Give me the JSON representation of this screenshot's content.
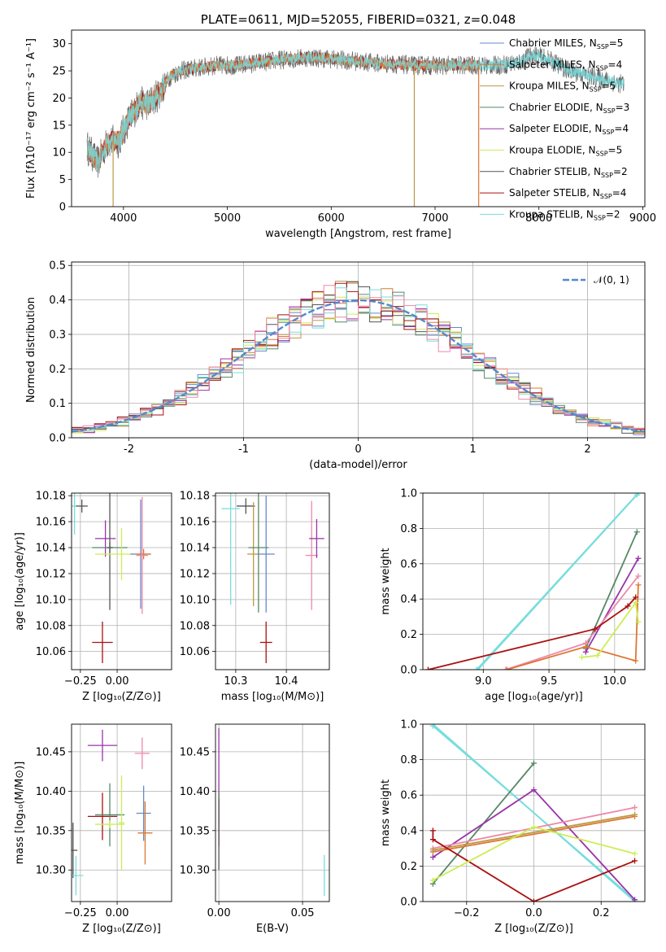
{
  "colors": {
    "chabrier_miles": "#6688cc",
    "salpeter_miles": "#dd7733",
    "kroupa_miles": "#bb9944",
    "chabrier_elodie": "#558866",
    "salpeter_elodie": "#9933aa",
    "kroupa_elodie": "#ccee55",
    "chabrier_stelib": "#555555",
    "salpeter_stelib": "#aa1111",
    "kroupa_stelib": "#77dddd",
    "pink": "#ee88aa",
    "normal_curve": "#5588cc"
  },
  "chart_data": [
    {
      "id": "spectrum",
      "type": "line",
      "title": "PLATE=0611, MJD=52055, FIBERID=0321, z=0.048",
      "xlabel": "wavelength [Angstrom, rest frame]",
      "ylabel": "Flux [fλ10⁻¹⁷ erg cm⁻² s⁻¹ A⁻¹]",
      "xlim": [
        3500,
        9020
      ],
      "ylim": [
        0,
        32.5
      ],
      "xticks": [
        4000,
        5000,
        6000,
        7000,
        8000,
        9000
      ],
      "yticks": [
        0,
        5,
        10,
        15,
        20,
        25,
        30
      ],
      "legend": [
        {
          "label": "Chabrier MILES, N",
          "sub": "SSP",
          "suffix": "=5",
          "color_key": "chabrier_miles"
        },
        {
          "label": "Salpeter MILES, N",
          "sub": "SSP",
          "suffix": "=4",
          "color_key": "salpeter_miles"
        },
        {
          "label": "Kroupa MILES, N",
          "sub": "SSP",
          "suffix": "=5",
          "color_key": "kroupa_miles"
        },
        {
          "label": "Chabrier ELODIE, N",
          "sub": "SSP",
          "suffix": "=3",
          "color_key": "chabrier_elodie"
        },
        {
          "label": "Salpeter ELODIE, N",
          "sub": "SSP",
          "suffix": "=4",
          "color_key": "salpeter_elodie"
        },
        {
          "label": "Kroupa ELODIE, N",
          "sub": "SSP",
          "suffix": "=5",
          "color_key": "kroupa_elodie"
        },
        {
          "label": "Chabrier STELIB, N",
          "sub": "SSP",
          "suffix": "=2",
          "color_key": "chabrier_stelib"
        },
        {
          "label": "Salpeter STELIB, N",
          "sub": "SSP",
          "suffix": "=4",
          "color_key": "salpeter_stelib"
        },
        {
          "label": "Kroupa STELIB, N",
          "sub": "SSP",
          "suffix": "=2",
          "color_key": "kroupa_stelib"
        }
      ],
      "continuum": [
        [
          3650,
          11
        ],
        [
          3750,
          8
        ],
        [
          3850,
          12
        ],
        [
          3950,
          12
        ],
        [
          4050,
          16
        ],
        [
          4150,
          19
        ],
        [
          4250,
          19
        ],
        [
          4350,
          21
        ],
        [
          4450,
          24
        ],
        [
          4550,
          25
        ],
        [
          4700,
          25.5
        ],
        [
          4900,
          26
        ],
        [
          5100,
          26
        ],
        [
          5300,
          26.5
        ],
        [
          5500,
          27
        ],
        [
          5800,
          27.5
        ],
        [
          6100,
          27
        ],
        [
          6400,
          26.5
        ],
        [
          6800,
          26
        ],
        [
          7200,
          26
        ],
        [
          7600,
          26
        ],
        [
          7800,
          26.5
        ],
        [
          7950,
          28
        ],
        [
          8100,
          27
        ],
        [
          8300,
          25
        ],
        [
          8500,
          24
        ],
        [
          8700,
          23
        ],
        [
          8820,
          22.5
        ]
      ],
      "model_cutoffs": [
        {
          "x": 3900,
          "color_key": "kroupa_miles"
        },
        {
          "x": 6800,
          "color_key": "kroupa_miles"
        },
        {
          "x": 7420,
          "color_key": "salpeter_miles"
        }
      ],
      "model_end_x": 7420,
      "data_end_x": 8820
    },
    {
      "id": "residuals",
      "type": "line",
      "xlabel": "(data-model)/error",
      "ylabel": "Normed distribution",
      "xlim": [
        -2.5,
        2.5
      ],
      "ylim": [
        0,
        0.51
      ],
      "xticks": [
        -2,
        -1,
        0,
        1,
        2
      ],
      "yticks": [
        0.0,
        0.1,
        0.2,
        0.3,
        0.4,
        0.5
      ],
      "series": [
        {
          "name": "𝒩(0, 1)",
          "type": "gaussian",
          "mean": 0,
          "sigma": 1,
          "color_key": "normal_curve"
        }
      ],
      "histogram_bin_width": 0.1,
      "histogram_color_keys": [
        "chabrier_miles",
        "salpeter_miles",
        "kroupa_miles",
        "chabrier_elodie",
        "salpeter_elodie",
        "kroupa_elodie",
        "chabrier_stelib",
        "salpeter_stelib",
        "kroupa_stelib",
        "pink"
      ]
    },
    {
      "id": "age_vs_Z",
      "type": "scatter",
      "xlabel": "Z [log₁₀(Z/Z⊙)]",
      "ylabel": "age  [log₁₀(age/yr)]",
      "xlim": [
        -0.31,
        0.37
      ],
      "ylim": [
        10.046,
        10.182
      ],
      "xticks": [
        -0.25,
        0.0
      ],
      "xtick_labels": [
        "−0.25",
        "0.00"
      ],
      "yticks": [
        10.06,
        10.08,
        10.1,
        10.12,
        10.14,
        10.16,
        10.18
      ],
      "points": [
        {
          "x": -0.29,
          "y": 10.172,
          "xerr": 0.02,
          "yerr": 0.022,
          "color_key": "kroupa_stelib"
        },
        {
          "x": -0.24,
          "y": 10.172,
          "xerr": 0.04,
          "yerr": 0.005,
          "color_key": "chabrier_stelib"
        },
        {
          "x": -0.08,
          "y": 10.147,
          "xerr": 0.07,
          "yerr": 0.014,
          "color_key": "salpeter_elodie"
        },
        {
          "x": -0.05,
          "y": 10.14,
          "xerr": 0.12,
          "yerr": 0.004,
          "color_key": "chabrier_elodie"
        },
        {
          "x": -0.05,
          "y": 10.14,
          "xerr": 0.02,
          "yerr": 0.048,
          "color_key": "chabrier_stelib"
        },
        {
          "x": 0.03,
          "y": 10.135,
          "xerr": 0.18,
          "yerr": 0.02,
          "color_key": "kroupa_elodie"
        },
        {
          "x": 0.16,
          "y": 10.135,
          "xerr": 0.07,
          "yerr": 0.042,
          "color_key": "chabrier_miles"
        },
        {
          "x": 0.18,
          "y": 10.135,
          "xerr": 0.05,
          "yerr": 0.004,
          "color_key": "salpeter_miles"
        },
        {
          "x": 0.17,
          "y": 10.134,
          "xerr": 0.04,
          "yerr": 0.045,
          "color_key": "pink"
        },
        {
          "x": -0.1,
          "y": 10.067,
          "xerr": 0.07,
          "yerr": 0.016,
          "color_key": "salpeter_stelib"
        }
      ]
    },
    {
      "id": "age_vs_mass",
      "type": "scatter",
      "xlabel": "mass [log₁₀(M/M⊙)]",
      "xlim": [
        10.26,
        10.485
      ],
      "ylim": [
        10.046,
        10.182
      ],
      "xticks": [
        10.3,
        10.4
      ],
      "yticks": [
        10.06,
        10.08,
        10.1,
        10.12,
        10.14,
        10.16,
        10.18
      ],
      "points": [
        {
          "x": 10.29,
          "y": 10.17,
          "xerr": 0.018,
          "yerr": 0.074,
          "color_key": "kroupa_stelib"
        },
        {
          "x": 10.32,
          "y": 10.172,
          "xerr": 0.018,
          "yerr": 0.006,
          "color_key": "chabrier_stelib"
        },
        {
          "x": 10.335,
          "y": 10.135,
          "xerr": 0.012,
          "yerr": 0.04,
          "color_key": "kroupa_miles"
        },
        {
          "x": 10.345,
          "y": 10.14,
          "xerr": 0.02,
          "yerr": 0.05,
          "color_key": "chabrier_elodie"
        },
        {
          "x": 10.36,
          "y": 10.135,
          "xerr": 0.017,
          "yerr": 0.045,
          "color_key": "chabrier_miles"
        },
        {
          "x": 10.36,
          "y": 10.067,
          "xerr": 0.012,
          "yerr": 0.016,
          "color_key": "salpeter_stelib"
        },
        {
          "x": 10.45,
          "y": 10.134,
          "xerr": 0.012,
          "yerr": 0.042,
          "color_key": "pink"
        },
        {
          "x": 10.46,
          "y": 10.147,
          "xerr": 0.015,
          "yerr": 0.015,
          "color_key": "salpeter_elodie"
        }
      ]
    },
    {
      "id": "weight_vs_age",
      "type": "line",
      "xlabel": "age  [log₁₀(age/yr)]",
      "ylabel": "mass weight",
      "xlim": [
        8.54,
        10.23
      ],
      "ylim": [
        0,
        1
      ],
      "xticks": [
        9.0,
        9.5,
        10.0
      ],
      "yticks": [
        0.0,
        0.2,
        0.4,
        0.6,
        0.8,
        1.0
      ],
      "series": [
        {
          "color_key": "kroupa_stelib",
          "points": [
            [
              8.95,
              0.0
            ],
            [
              10.18,
              1.0
            ]
          ]
        },
        {
          "color_key": "kroupa_stelib",
          "points": [
            [
              8.96,
              0.0
            ],
            [
              10.17,
              0.99
            ]
          ]
        },
        {
          "color_key": "chabrier_elodie",
          "points": [
            [
              9.78,
              0.12
            ],
            [
              10.17,
              0.78
            ]
          ]
        },
        {
          "color_key": "salpeter_elodie",
          "points": [
            [
              9.78,
              0.1
            ],
            [
              10.18,
              0.63
            ]
          ]
        },
        {
          "color_key": "pink",
          "points": [
            [
              9.17,
              0.0
            ],
            [
              9.78,
              0.15
            ],
            [
              10.18,
              0.53
            ]
          ]
        },
        {
          "color_key": "salpeter_miles",
          "points": [
            [
              9.18,
              0.0
            ],
            [
              9.78,
              0.13
            ],
            [
              10.16,
              0.05
            ],
            [
              10.18,
              0.48
            ]
          ]
        },
        {
          "color_key": "salpeter_stelib",
          "points": [
            [
              8.58,
              0.0
            ],
            [
              9.85,
              0.23
            ],
            [
              10.1,
              0.36
            ],
            [
              10.16,
              0.41
            ]
          ]
        },
        {
          "color_key": "kroupa_elodie",
          "points": [
            [
              9.75,
              0.07
            ],
            [
              9.87,
              0.08
            ],
            [
              10.16,
              0.38
            ],
            [
              10.18,
              0.27
            ]
          ]
        }
      ]
    },
    {
      "id": "mass_vs_Z",
      "type": "scatter",
      "xlabel": "Z [log₁₀(Z/Z⊙)]",
      "ylabel": "mass [log₁₀(M/M⊙)]",
      "xlim": [
        -0.31,
        0.37
      ],
      "ylim": [
        10.26,
        10.485
      ],
      "xticks": [
        -0.25,
        0.0
      ],
      "xtick_labels": [
        "−0.25",
        "0.00"
      ],
      "yticks": [
        10.3,
        10.35,
        10.4,
        10.45
      ],
      "points": [
        {
          "x": -0.3,
          "y": 10.325,
          "xerr": 0.03,
          "yerr": 0.035,
          "color_key": "chabrier_stelib"
        },
        {
          "x": -0.28,
          "y": 10.293,
          "xerr": 0.05,
          "yerr": 0.025,
          "color_key": "kroupa_stelib"
        },
        {
          "x": -0.1,
          "y": 10.458,
          "xerr": 0.1,
          "yerr": 0.02,
          "color_key": "salpeter_elodie"
        },
        {
          "x": -0.1,
          "y": 10.368,
          "xerr": 0.1,
          "yerr": 0.03,
          "color_key": "salpeter_stelib"
        },
        {
          "x": -0.05,
          "y": 10.37,
          "xerr": 0.1,
          "yerr": 0.04,
          "color_key": "chabrier_elodie"
        },
        {
          "x": -0.05,
          "y": 10.358,
          "xerr": 0.1,
          "yerr": 0.005,
          "color_key": "kroupa_elodie"
        },
        {
          "x": 0.03,
          "y": 10.36,
          "xerr": 0.02,
          "yerr": 0.06,
          "color_key": "kroupa_elodie"
        },
        {
          "x": 0.18,
          "y": 10.372,
          "xerr": 0.05,
          "yerr": 0.035,
          "color_key": "chabrier_miles"
        },
        {
          "x": 0.19,
          "y": 10.347,
          "xerr": 0.05,
          "yerr": 0.04,
          "color_key": "salpeter_miles"
        },
        {
          "x": 0.17,
          "y": 10.448,
          "xerr": 0.05,
          "yerr": 0.02,
          "color_key": "pink"
        }
      ]
    },
    {
      "id": "mass_vs_ebv",
      "type": "scatter",
      "xlabel": "E(B-V)",
      "xlim": [
        -0.002,
        0.066
      ],
      "ylim": [
        10.26,
        10.485
      ],
      "xticks": [
        0.0,
        0.05
      ],
      "xtick_labels": [
        "0.00",
        "0.05"
      ],
      "yticks": [
        10.3,
        10.35,
        10.4,
        10.45
      ],
      "points": [
        {
          "x": 0.0,
          "y": 10.44,
          "xerr": 0,
          "yerr": 0.04,
          "color_key": "salpeter_elodie"
        },
        {
          "x": 0.0,
          "y": 10.36,
          "xerr": 0,
          "yerr": 0.03,
          "color_key": "salpeter_stelib"
        },
        {
          "x": 0.0,
          "y": 10.35,
          "xerr": 0,
          "yerr": 0.05,
          "color_key": "chabrier_stelib"
        },
        {
          "x": 0.063,
          "y": 10.293,
          "xerr": 0,
          "yerr": 0.026,
          "color_key": "kroupa_stelib"
        }
      ]
    },
    {
      "id": "weight_vs_Z",
      "type": "line",
      "xlabel": "Z [log₁₀(Z/Z⊙)]",
      "ylabel": "mass weight",
      "xlim": [
        -0.33,
        0.33
      ],
      "ylim": [
        0,
        1
      ],
      "xticks": [
        -0.2,
        0.0,
        0.2
      ],
      "xtick_labels": [
        "−0.2",
        "0.0",
        "0.2"
      ],
      "yticks": [
        0.0,
        0.2,
        0.4,
        0.6,
        0.8,
        1.0
      ],
      "series": [
        {
          "color_key": "kroupa_stelib",
          "points": [
            [
              -0.3,
              1.0
            ],
            [
              0.3,
              0.0
            ]
          ]
        },
        {
          "color_key": "kroupa_stelib",
          "points": [
            [
              -0.3,
              0.99
            ],
            [
              0.3,
              0.01
            ]
          ]
        },
        {
          "color_key": "chabrier_elodie",
          "points": [
            [
              -0.3,
              0.1
            ],
            [
              0.0,
              0.78
            ]
          ]
        },
        {
          "color_key": "salpeter_elodie",
          "points": [
            [
              -0.3,
              0.25
            ],
            [
              0.0,
              0.63
            ],
            [
              0.3,
              0.01
            ]
          ]
        },
        {
          "color_key": "pink",
          "points": [
            [
              -0.3,
              0.3
            ],
            [
              0.3,
              0.53
            ]
          ]
        },
        {
          "color_key": "salpeter_miles",
          "points": [
            [
              -0.3,
              0.28
            ],
            [
              0.3,
              0.48
            ]
          ]
        },
        {
          "color_key": "kroupa_miles",
          "points": [
            [
              -0.3,
              0.29
            ],
            [
              0.3,
              0.49
            ]
          ]
        },
        {
          "color_key": "salpeter_stelib",
          "points": [
            [
              -0.3,
              0.4
            ],
            [
              -0.3,
              0.35
            ],
            [
              0.0,
              0.0
            ],
            [
              0.3,
              0.23
            ]
          ]
        },
        {
          "color_key": "kroupa_elodie",
          "points": [
            [
              -0.3,
              0.12
            ],
            [
              0.0,
              0.42
            ],
            [
              0.3,
              0.27
            ]
          ]
        }
      ]
    }
  ]
}
